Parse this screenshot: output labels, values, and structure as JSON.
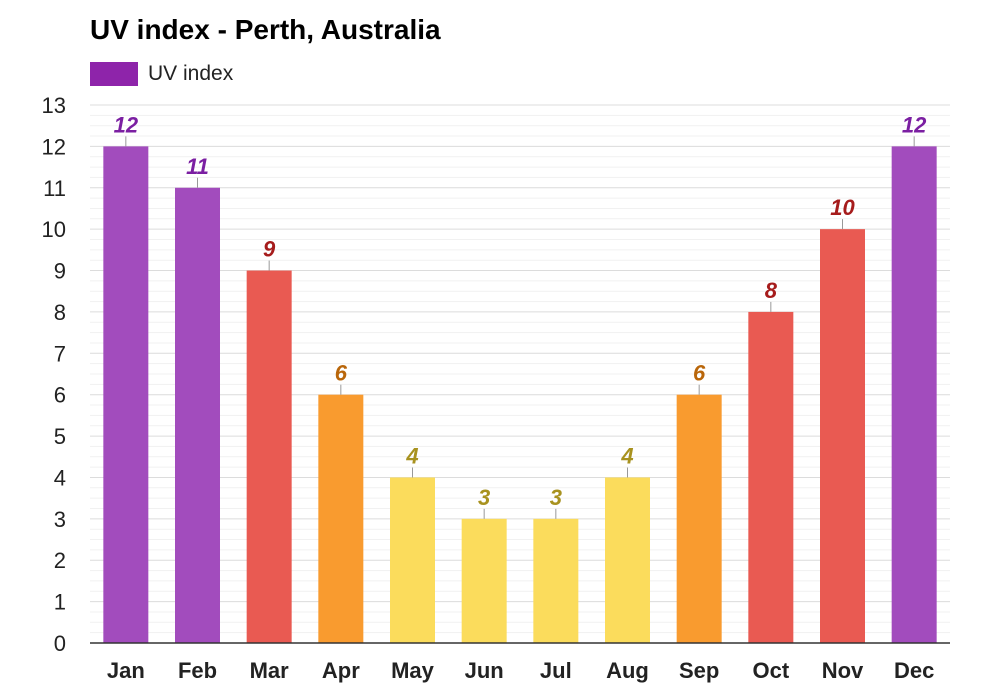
{
  "chart_data": {
    "type": "bar",
    "title": "UV index - Perth, Australia",
    "categories": [
      "Jan",
      "Feb",
      "Mar",
      "Apr",
      "May",
      "Jun",
      "Jul",
      "Aug",
      "Sep",
      "Oct",
      "Nov",
      "Dec"
    ],
    "series": [
      {
        "name": "UV index",
        "values": [
          12,
          11,
          9,
          6,
          4,
          3,
          3,
          4,
          6,
          8,
          10,
          12
        ]
      }
    ],
    "ylim": [
      0,
      13
    ],
    "yticks": [
      0,
      1,
      2,
      3,
      4,
      5,
      6,
      7,
      8,
      9,
      10,
      11,
      12,
      13
    ],
    "grid": true,
    "legend_position": "top-left",
    "legend_color": "#8e24aa",
    "colors": {
      "extreme": {
        "fill": "#a24cbd",
        "label": "#7b1fa2"
      },
      "very_high": {
        "fill": "#e95a52",
        "label": "#a61c1c"
      },
      "high": {
        "fill": "#f99b2f",
        "label": "#b9660a"
      },
      "moderate": {
        "fill": "#fbdc5c",
        "label": "#a8921f"
      }
    }
  }
}
